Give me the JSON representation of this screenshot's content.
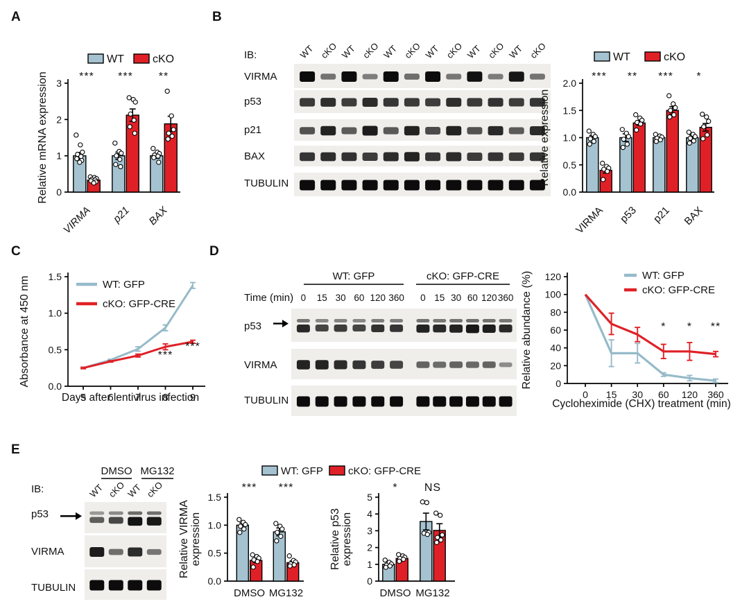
{
  "colors": {
    "wt_fill": "#a5c2d0",
    "wt_text": "#31718a",
    "wt_line": "#96bac9",
    "cko": "#df2127",
    "edge": "#000000",
    "band": "#0c0c0c",
    "blot_bg": "#efeeeb",
    "text": "#111111"
  },
  "panels": {
    "A": {
      "letter": "A"
    },
    "B": {
      "letter": "B",
      "blot": {
        "ib_label": "IB:",
        "lane_labels": [
          "WT",
          "cKO",
          "WT",
          "cKO",
          "WT",
          "cKO",
          "WT",
          "cKO",
          "WT",
          "cKO",
          "WT",
          "cKO"
        ],
        "rows": [
          {
            "label": "VIRMA",
            "bands": [
              1,
              0.35,
              1,
              0.28,
              1,
              0.38,
              1,
              0.33,
              0.97,
              0.3,
              0.95,
              0.35
            ]
          },
          {
            "label": "p53",
            "bands": [
              0.72,
              0.78,
              0.7,
              0.8,
              0.74,
              0.72,
              0.68,
              0.78,
              0.72,
              0.76,
              0.7,
              0.74
            ]
          },
          {
            "label": "p21",
            "bands": [
              0.55,
              0.85,
              0.5,
              0.9,
              0.52,
              0.85,
              0.6,
              0.85,
              0.55,
              0.82,
              0.5,
              0.8
            ]
          },
          {
            "label": "BAX",
            "bands": [
              0.75,
              0.78,
              0.76,
              0.7,
              0.8,
              0.85,
              0.75,
              0.8,
              0.7,
              0.74,
              0.72,
              0.75
            ]
          },
          {
            "label": "TUBULIN",
            "bands": [
              1,
              1,
              1,
              1,
              1,
              1,
              1,
              1,
              1,
              1,
              1,
              1
            ]
          }
        ]
      }
    },
    "C": {
      "letter": "C"
    },
    "D": {
      "letter": "D",
      "blot": {
        "groups": [
          "WT: GFP",
          "cKO: GFP-CRE"
        ],
        "lane_row_label": "Time (min)",
        "lane_labels": [
          "0",
          "15",
          "30",
          "60",
          "120",
          "360",
          "0",
          "15",
          "30",
          "60",
          "120",
          "360"
        ],
        "rows": [
          {
            "label": "p53",
            "arrow": true,
            "doublet": true,
            "bands": [
              0.8,
              0.62,
              0.68,
              0.62,
              0.75,
              0.72,
              0.85,
              0.8,
              0.85,
              0.92,
              0.88,
              0.8
            ]
          },
          {
            "label": "VIRMA",
            "bands": [
              0.85,
              0.85,
              0.8,
              0.75,
              0.68,
              0.65,
              0.45,
              0.4,
              0.45,
              0.42,
              0.45,
              0.18
            ]
          },
          {
            "label": "TUBULIN",
            "bands": [
              1,
              1,
              1,
              1,
              1,
              1,
              1,
              1,
              1,
              1,
              1,
              1
            ]
          }
        ]
      }
    },
    "E": {
      "letter": "E",
      "legend": {
        "labels": [
          "WT: GFP",
          "cKO: GFP-CRE"
        ]
      },
      "blot": {
        "ib_label": "IB:",
        "groups": [
          "DMSO",
          "MG132"
        ],
        "lane_labels": [
          "WT",
          "cKO",
          "WT",
          "cKO"
        ],
        "rows": [
          {
            "label": "p53",
            "arrow": true,
            "doublet": true,
            "bands": [
              0.45,
              0.6,
              0.95,
              0.92
            ]
          },
          {
            "label": "VIRMA",
            "bands": [
              0.9,
              0.38,
              0.8,
              0.33
            ]
          },
          {
            "label": "TUBULIN",
            "bands": [
              1,
              1,
              1,
              1
            ]
          }
        ]
      }
    }
  },
  "chart_data": [
    {
      "id": "A",
      "type": "bar",
      "ylabel": "Relative mRNA expression",
      "ylim": [
        0,
        3
      ],
      "yticks": [
        0,
        1,
        2,
        3
      ],
      "ydec": 0,
      "categories": [
        "VIRMA",
        "p21",
        "BAX"
      ],
      "italic": true,
      "series": [
        {
          "key": "wt",
          "name": "WT",
          "values": [
            1.0,
            1.0,
            1.0
          ],
          "errors": [
            0.09,
            0.1,
            0.07
          ],
          "dots": [
            [
              1.57,
              1.3,
              1.1,
              1.04,
              0.98,
              0.92,
              0.87,
              0.82
            ],
            [
              1.35,
              1.12,
              1.07,
              1.0,
              0.9,
              0.76,
              0.7
            ],
            [
              1.2,
              1.1,
              1.06,
              1.02,
              0.99,
              0.95,
              0.82
            ]
          ]
        },
        {
          "key": "cko",
          "name": "cKO",
          "values": [
            0.33,
            2.12,
            1.88
          ],
          "errors": [
            0.04,
            0.17,
            0.21
          ],
          "dots": [
            [
              0.42,
              0.4,
              0.37,
              0.35,
              0.33,
              0.31,
              0.28,
              0.25
            ],
            [
              2.6,
              2.55,
              2.48,
              2.15,
              1.98,
              1.8,
              1.62
            ],
            [
              2.78,
              2.1,
              1.72,
              1.62,
              1.54,
              1.46
            ]
          ]
        }
      ],
      "sig": [
        "***",
        "***",
        "**"
      ],
      "legend": [
        "WT",
        "cKO"
      ]
    },
    {
      "id": "B",
      "type": "bar",
      "ylabel": "Relative expression",
      "ylim": [
        0,
        2
      ],
      "yticks": [
        0,
        0.5,
        1,
        1.5,
        2
      ],
      "ydec": 1,
      "categories": [
        "VIRMA",
        "p53",
        "p21",
        "BAX"
      ],
      "italic": false,
      "series": [
        {
          "key": "wt",
          "name": "WT",
          "values": [
            1.0,
            1.0,
            1.0,
            1.0
          ],
          "errors": [
            0.04,
            0.07,
            0.03,
            0.05
          ],
          "dots": [
            [
              1.12,
              1.06,
              1.02,
              0.98,
              0.93,
              0.88
            ],
            [
              1.15,
              1.08,
              1.02,
              0.97,
              0.88,
              0.82
            ],
            [
              1.06,
              1.03,
              1.01,
              0.99,
              0.96,
              0.93
            ],
            [
              1.1,
              1.06,
              1.02,
              0.99,
              0.94,
              0.9
            ]
          ]
        },
        {
          "key": "cko",
          "name": "cKO",
          "values": [
            0.4,
            1.27,
            1.5,
            1.19
          ],
          "errors": [
            0.05,
            0.04,
            0.07,
            0.07
          ],
          "dots": [
            [
              0.53,
              0.47,
              0.44,
              0.42,
              0.38,
              0.23
            ],
            [
              1.42,
              1.36,
              1.32,
              1.28,
              1.25,
              1.14
            ],
            [
              1.77,
              1.62,
              1.55,
              1.5,
              1.42,
              1.38
            ],
            [
              1.43,
              1.38,
              1.3,
              1.2,
              1.05,
              0.98
            ]
          ]
        }
      ],
      "sig": [
        "***",
        "**",
        "***",
        "*"
      ],
      "legend": [
        "WT",
        "cKO"
      ]
    },
    {
      "id": "C",
      "type": "line",
      "ylabel": "Absorbance at 450 nm",
      "xlabel": "Days after lentivirus infection",
      "x_labels": [
        "5",
        "6",
        "7",
        "8",
        "9"
      ],
      "ylim": [
        0,
        1.5
      ],
      "yticks": [
        0,
        0.5,
        1,
        1.5
      ],
      "ydec": 1,
      "series": [
        {
          "key": "wt",
          "name": "WT: GFP",
          "values": [
            0.25,
            0.36,
            0.51,
            0.8,
            1.38
          ],
          "errors": [
            0.01,
            0.01,
            0.03,
            0.04,
            0.04
          ]
        },
        {
          "key": "cko",
          "name": "cKO: GFP-CRE",
          "values": [
            0.25,
            0.34,
            0.42,
            0.54,
            0.61
          ],
          "errors": [
            0.01,
            0.01,
            0.02,
            0.04,
            0.02
          ]
        }
      ],
      "sig": [
        {
          "xi": 3,
          "y": 0.38,
          "label": "***"
        },
        {
          "xi": 4,
          "y": 0.5,
          "label": "***"
        }
      ]
    },
    {
      "id": "D",
      "type": "line",
      "ylabel": "Relative abundance (%)",
      "xlabel": "Cycloheximide (CHX) treatment (min)",
      "x_labels": [
        "0",
        "15",
        "30",
        "60",
        "120",
        "360"
      ],
      "ylim": [
        0,
        120
      ],
      "yticks": [
        0,
        20,
        40,
        60,
        80,
        100,
        120
      ],
      "ydec": 0,
      "series": [
        {
          "key": "wt",
          "name": "WT: GFP",
          "values": [
            100,
            34,
            34,
            10,
            6,
            3
          ],
          "errors": [
            0,
            15,
            11,
            2,
            3,
            2
          ]
        },
        {
          "key": "cko",
          "name": "cKO: GFP-CRE",
          "values": [
            100,
            67,
            55,
            36,
            36,
            33
          ],
          "errors": [
            0,
            12,
            8,
            8,
            10,
            3
          ]
        }
      ],
      "sig": [
        {
          "xi": 3,
          "y": 60,
          "label": "*"
        },
        {
          "xi": 4,
          "y": 60,
          "label": "*"
        },
        {
          "xi": 5,
          "y": 60,
          "label": "**"
        }
      ]
    },
    {
      "id": "E1",
      "type": "bar",
      "ylabel_lines": [
        "Relative VIRMA",
        "expression"
      ],
      "ylim": [
        0,
        1.5
      ],
      "yticks": [
        0,
        0.5,
        1,
        1.5
      ],
      "ydec": 1,
      "categories": [
        "DMSO",
        "MG132"
      ],
      "italic": false,
      "series": [
        {
          "key": "wt",
          "name": "WT: GFP",
          "values": [
            1.0,
            0.88
          ],
          "errors": [
            0.04,
            0.07
          ],
          "dots": [
            [
              1.1,
              1.05,
              1.01,
              0.98,
              0.93,
              0.87
            ],
            [
              1.03,
              0.98,
              0.93,
              0.87,
              0.8,
              0.72
            ]
          ]
        },
        {
          "key": "cko",
          "name": "cKO: GFP-CRE",
          "values": [
            0.37,
            0.33
          ],
          "errors": [
            0.04,
            0.03
          ],
          "dots": [
            [
              0.47,
              0.44,
              0.41,
              0.38,
              0.35,
              0.25
            ],
            [
              0.45,
              0.37,
              0.34,
              0.31,
              0.29,
              0.27
            ]
          ]
        }
      ],
      "sig": [
        "***",
        "***"
      ]
    },
    {
      "id": "E2",
      "type": "bar",
      "ylabel_lines": [
        "Relative p53",
        "expression"
      ],
      "ylim": [
        0,
        5
      ],
      "yticks": [
        0,
        1,
        2,
        3,
        4,
        5
      ],
      "ydec": 0,
      "categories": [
        "DMSO",
        "MG132"
      ],
      "italic": false,
      "series": [
        {
          "key": "wt",
          "name": "WT: GFP",
          "values": [
            1.0,
            3.55
          ],
          "errors": [
            0.15,
            0.5
          ],
          "dots": [
            [
              1.25,
              1.12,
              1.02,
              0.95,
              0.9,
              0.82
            ],
            [
              4.72,
              4.68,
              2.9,
              2.85,
              2.78
            ]
          ]
        },
        {
          "key": "cko",
          "name": "cKO: GFP-CRE",
          "values": [
            1.35,
            3.02
          ],
          "errors": [
            0.12,
            0.4
          ],
          "dots": [
            [
              1.58,
              1.5,
              1.42,
              1.35,
              1.3,
              1.18
            ],
            [
              4.05,
              3.92,
              2.75,
              2.6,
              2.45,
              2.3
            ]
          ]
        }
      ],
      "sig": [
        "*",
        "NS"
      ]
    }
  ]
}
